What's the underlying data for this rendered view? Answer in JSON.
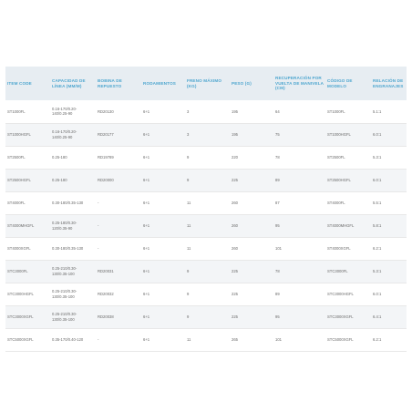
{
  "table": {
    "headers": [
      "ITEM CODE",
      "CAPACIDAD DE LÍNEA (MM/M)",
      "BOBINA DE REPUESTO",
      "RODAMIENTOS",
      "FRENO MÁXIMO (KG)",
      "PESO (G)",
      "RECUPERACIÓN POR VUELTA DE MANIVELA (CM)",
      "CÓDIGO DE MODELO",
      "RELACIÓN DE ENGRANAJES"
    ],
    "rows": [
      [
        "ST1000FL",
        "0.16-170/0.20-\n140/0.25-90",
        "RD20130",
        "6+1",
        "3",
        "195",
        "64",
        "ST1000FL",
        "5.1:1"
      ],
      [
        "ST1000HGFL",
        "0.16-170/0.20-\n140/0.25-90",
        "RD20177",
        "6+1",
        "3",
        "195",
        "75",
        "ST1000HGFL",
        "6.0:1"
      ],
      [
        "ST2500FL",
        "0.25-180",
        "RD19789",
        "6+1",
        "9",
        "220",
        "78",
        "ST2500FL",
        "5.3:1"
      ],
      [
        "ST2500HGFL",
        "0.25-180",
        "RD20000",
        "6+1",
        "9",
        "225",
        "89",
        "ST2500HGFL",
        "6.0:1"
      ],
      [
        "ST4000FL",
        "0.30-180/0.35-130",
        "-",
        "6+1",
        "11",
        "260",
        "87",
        "ST4000FL",
        "5.5:1"
      ],
      [
        "ST4000MHGFL",
        "0.25-180/0.30-\n120/0.35-90",
        "-",
        "6+1",
        "11",
        "260",
        "95",
        "ST4000MHGFL",
        "5.8:1"
      ],
      [
        "ST4000XGFL",
        "0.30-180/0.35-130",
        "-",
        "6+1",
        "11",
        "260",
        "101",
        "ST4000XGFL",
        "6.2:1"
      ],
      [
        "STC3000FL",
        "0.25-210/0.30-\n130/0.35-100",
        "RD20031",
        "6+1",
        "9",
        "225",
        "78",
        "STC3000FL",
        "5.3:1"
      ],
      [
        "STC3000HGFL",
        "0.25-210/0.30-\n130/0.35-100",
        "RD20032",
        "6+1",
        "9",
        "225",
        "89",
        "STC3000HGFL",
        "6.0:1"
      ],
      [
        "STC3000XGFL",
        "0.25-210/0.30-\n130/0.35-100",
        "RD20038",
        "6+1",
        "9",
        "225",
        "95",
        "STC3000XGFL",
        "6.4:1"
      ],
      [
        "STC5000XGFL",
        "0.35-170/0.40-120",
        "-",
        "6+1",
        "11",
        "265",
        "101",
        "STC5000XGFL",
        "6.2:1"
      ]
    ]
  }
}
